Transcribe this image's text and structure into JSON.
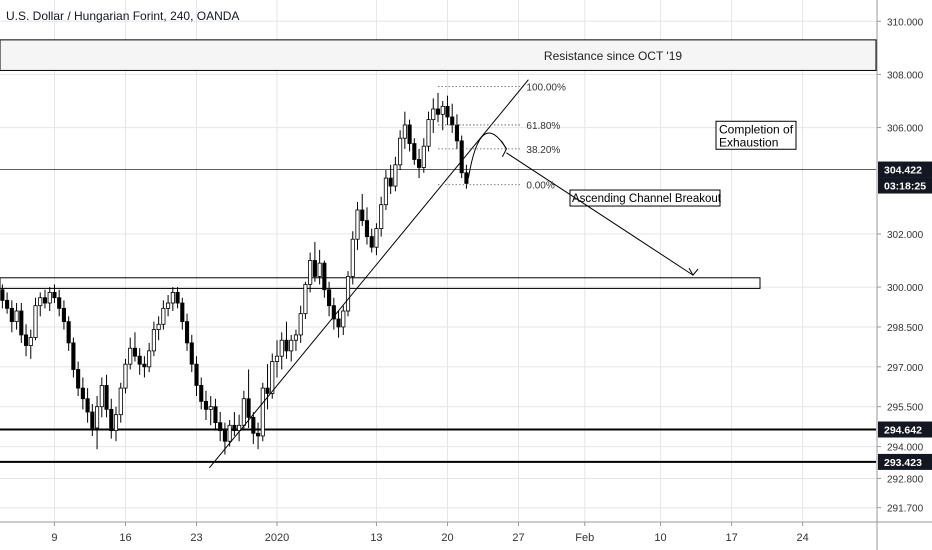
{
  "header": {
    "title": "U.S. Dollar / Hungarian Forint, 240, OANDA"
  },
  "chart_data": {
    "type": "candlestick",
    "title": "U.S. Dollar / Hungarian Forint, 240, OANDA",
    "ylim": [
      291.2,
      310.8
    ],
    "y_ticks": [
      {
        "label": "310.000",
        "value": 310.0
      },
      {
        "label": "308.000",
        "value": 308.0
      },
      {
        "label": "306.000",
        "value": 306.0
      },
      {
        "label": "302.000",
        "value": 302.0
      },
      {
        "label": "300.000",
        "value": 300.0
      },
      {
        "label": "298.500",
        "value": 298.5
      },
      {
        "label": "297.000",
        "value": 297.0
      },
      {
        "label": "295.500",
        "value": 295.5
      },
      {
        "label": "294.000",
        "value": 294.0
      },
      {
        "label": "292.800",
        "value": 292.8
      },
      {
        "label": "291.700",
        "value": 291.7
      }
    ],
    "x_ticks": [
      {
        "label": "9",
        "index": 11
      },
      {
        "label": "16",
        "index": 26
      },
      {
        "label": "23",
        "index": 41
      },
      {
        "label": "2020",
        "index": 58
      },
      {
        "label": "13",
        "index": 79
      },
      {
        "label": "20",
        "index": 94
      },
      {
        "label": "27",
        "index": 109
      },
      {
        "label": "Feb",
        "index": 123
      },
      {
        "label": "10",
        "index": 139
      },
      {
        "label": "17",
        "index": 154
      },
      {
        "label": "24",
        "index": 169
      }
    ],
    "x_slots": 185,
    "candles": [
      [
        299.9,
        300.1,
        299.2,
        299.5
      ],
      [
        299.5,
        299.8,
        299.0,
        299.2
      ],
      [
        299.2,
        299.5,
        298.3,
        298.7
      ],
      [
        298.7,
        299.4,
        298.4,
        299.1
      ],
      [
        299.1,
        299.4,
        297.9,
        298.2
      ],
      [
        298.2,
        298.6,
        297.4,
        297.8
      ],
      [
        297.8,
        298.4,
        297.3,
        298.1
      ],
      [
        298.1,
        299.6,
        298.0,
        299.3
      ],
      [
        299.3,
        299.8,
        298.9,
        299.6
      ],
      [
        299.6,
        299.9,
        299.2,
        299.4
      ],
      [
        299.4,
        300.0,
        299.1,
        299.8
      ],
      [
        299.8,
        300.1,
        299.4,
        299.6
      ],
      [
        299.6,
        299.9,
        298.9,
        299.2
      ],
      [
        299.2,
        299.5,
        298.4,
        298.7
      ],
      [
        298.7,
        298.9,
        297.6,
        297.9
      ],
      [
        297.9,
        298.1,
        296.6,
        296.9
      ],
      [
        296.9,
        297.2,
        295.9,
        296.2
      ],
      [
        296.2,
        296.6,
        295.4,
        295.8
      ],
      [
        295.8,
        296.2,
        294.9,
        295.3
      ],
      [
        295.3,
        295.6,
        294.4,
        294.7
      ],
      [
        294.7,
        295.9,
        293.9,
        295.5
      ],
      [
        295.5,
        296.6,
        295.1,
        296.3
      ],
      [
        296.3,
        296.7,
        295.1,
        295.4
      ],
      [
        295.4,
        295.8,
        294.3,
        294.6
      ],
      [
        294.6,
        295.5,
        294.2,
        295.2
      ],
      [
        295.2,
        296.4,
        294.9,
        296.2
      ],
      [
        296.2,
        297.3,
        296.0,
        297.1
      ],
      [
        297.1,
        298.1,
        296.9,
        297.7
      ],
      [
        297.7,
        298.3,
        297.2,
        297.4
      ],
      [
        297.4,
        297.7,
        296.7,
        297.1
      ],
      [
        297.1,
        297.4,
        296.6,
        297.0
      ],
      [
        297.0,
        297.9,
        296.8,
        297.6
      ],
      [
        297.6,
        298.7,
        297.4,
        298.4
      ],
      [
        298.4,
        298.9,
        298.0,
        298.6
      ],
      [
        298.6,
        299.5,
        298.4,
        299.2
      ],
      [
        299.2,
        299.7,
        298.9,
        299.4
      ],
      [
        299.4,
        300.0,
        299.1,
        299.8
      ],
      [
        299.8,
        300.0,
        299.2,
        299.4
      ],
      [
        299.4,
        299.6,
        298.4,
        298.7
      ],
      [
        298.7,
        299.0,
        297.6,
        297.9
      ],
      [
        297.9,
        298.2,
        296.8,
        297.1
      ],
      [
        297.1,
        297.4,
        295.9,
        296.3
      ],
      [
        296.3,
        296.6,
        295.4,
        295.7
      ],
      [
        295.7,
        296.1,
        295.0,
        295.4
      ],
      [
        295.4,
        295.9,
        294.8,
        295.5
      ],
      [
        295.5,
        295.8,
        294.6,
        294.9
      ],
      [
        294.9,
        295.3,
        294.2,
        294.6
      ],
      [
        294.6,
        294.9,
        293.7,
        294.2
      ],
      [
        294.2,
        295.0,
        294.0,
        294.8
      ],
      [
        294.8,
        295.3,
        294.4,
        294.6
      ],
      [
        294.6,
        295.2,
        294.2,
        294.8
      ],
      [
        294.8,
        296.1,
        294.6,
        295.8
      ],
      [
        295.8,
        296.9,
        294.7,
        295.1
      ],
      [
        295.1,
        295.3,
        294.1,
        294.5
      ],
      [
        294.5,
        294.9,
        293.9,
        294.4
      ],
      [
        294.4,
        296.4,
        294.2,
        296.2
      ],
      [
        296.2,
        297.1,
        295.4,
        296.0
      ],
      [
        296.0,
        297.5,
        295.8,
        297.2
      ],
      [
        297.2,
        298.0,
        296.6,
        297.4
      ],
      [
        297.4,
        298.3,
        296.9,
        298.0
      ],
      [
        298.0,
        298.7,
        297.3,
        297.6
      ],
      [
        297.6,
        298.2,
        297.2,
        298.0
      ],
      [
        298.0,
        298.4,
        297.6,
        298.2
      ],
      [
        298.2,
        299.3,
        297.9,
        299.0
      ],
      [
        299.0,
        300.2,
        298.8,
        300.1
      ],
      [
        300.1,
        301.3,
        299.8,
        301.0
      ],
      [
        301.0,
        301.7,
        300.2,
        300.4
      ],
      [
        300.4,
        301.4,
        300.1,
        300.9
      ],
      [
        300.9,
        301.0,
        299.6,
        299.9
      ],
      [
        299.9,
        300.2,
        298.9,
        299.3
      ],
      [
        299.3,
        299.6,
        298.4,
        298.8
      ],
      [
        298.8,
        299.1,
        298.1,
        298.5
      ],
      [
        298.5,
        299.3,
        298.2,
        299.1
      ],
      [
        299.1,
        300.6,
        298.9,
        300.4
      ],
      [
        300.4,
        302.1,
        300.1,
        301.8
      ],
      [
        301.8,
        303.2,
        301.4,
        302.9
      ],
      [
        302.9,
        303.5,
        302.3,
        302.5
      ],
      [
        302.5,
        303.0,
        301.6,
        301.9
      ],
      [
        301.9,
        302.2,
        301.3,
        301.5
      ],
      [
        301.5,
        302.4,
        301.2,
        302.2
      ],
      [
        302.2,
        303.4,
        301.9,
        303.1
      ],
      [
        303.1,
        304.4,
        302.9,
        304.1
      ],
      [
        304.1,
        304.6,
        303.5,
        303.8
      ],
      [
        303.8,
        304.9,
        303.6,
        304.6
      ],
      [
        304.6,
        305.9,
        304.4,
        305.6
      ],
      [
        305.6,
        306.6,
        305.2,
        306.1
      ],
      [
        306.1,
        306.3,
        305.1,
        305.4
      ],
      [
        305.4,
        305.6,
        304.6,
        304.8
      ],
      [
        304.8,
        305.2,
        304.1,
        304.5
      ],
      [
        304.5,
        305.6,
        304.3,
        305.3
      ],
      [
        305.3,
        306.6,
        305.1,
        306.3
      ],
      [
        306.3,
        307.1,
        305.8,
        306.7
      ],
      [
        306.7,
        307.3,
        306.2,
        306.5
      ],
      [
        306.5,
        307.0,
        305.9,
        306.8
      ],
      [
        306.8,
        307.2,
        306.1,
        306.4
      ],
      [
        306.4,
        306.9,
        305.8,
        306.1
      ],
      [
        306.1,
        306.5,
        305.2,
        305.5
      ],
      [
        305.5,
        305.7,
        304.1,
        304.3
      ],
      [
        304.3,
        304.6,
        303.7,
        303.9
      ]
    ],
    "candle_start_index": 0,
    "fib_levels": [
      {
        "label": "100.00%",
        "value": 307.55
      },
      {
        "label": "61.80%",
        "value": 306.1
      },
      {
        "label": "38.20%",
        "value": 305.2
      },
      {
        "label": "0.00%",
        "value": 303.85
      }
    ],
    "current_price": {
      "label": "304.422",
      "value": 304.422,
      "countdown": "03:18:25"
    },
    "support_lines": [
      {
        "label": "294.642",
        "value": 294.642
      },
      {
        "label": "293.423",
        "value": 293.423
      }
    ],
    "resistance_zone": {
      "label": "Resistance since OCT '19",
      "low": 308.15,
      "high": 309.3
    },
    "support_zone": {
      "low": 299.95,
      "high": 300.35
    },
    "annotations": {
      "completion": "Completion of\nExhaustion",
      "breakout": "Ascending Channel Breakout"
    },
    "colors": {
      "candle": "#000000",
      "grid": "#e6e6e6",
      "axis_text": "#333333",
      "price_tag_bg": "#131722",
      "price_tag_text": "#ffffff"
    }
  }
}
